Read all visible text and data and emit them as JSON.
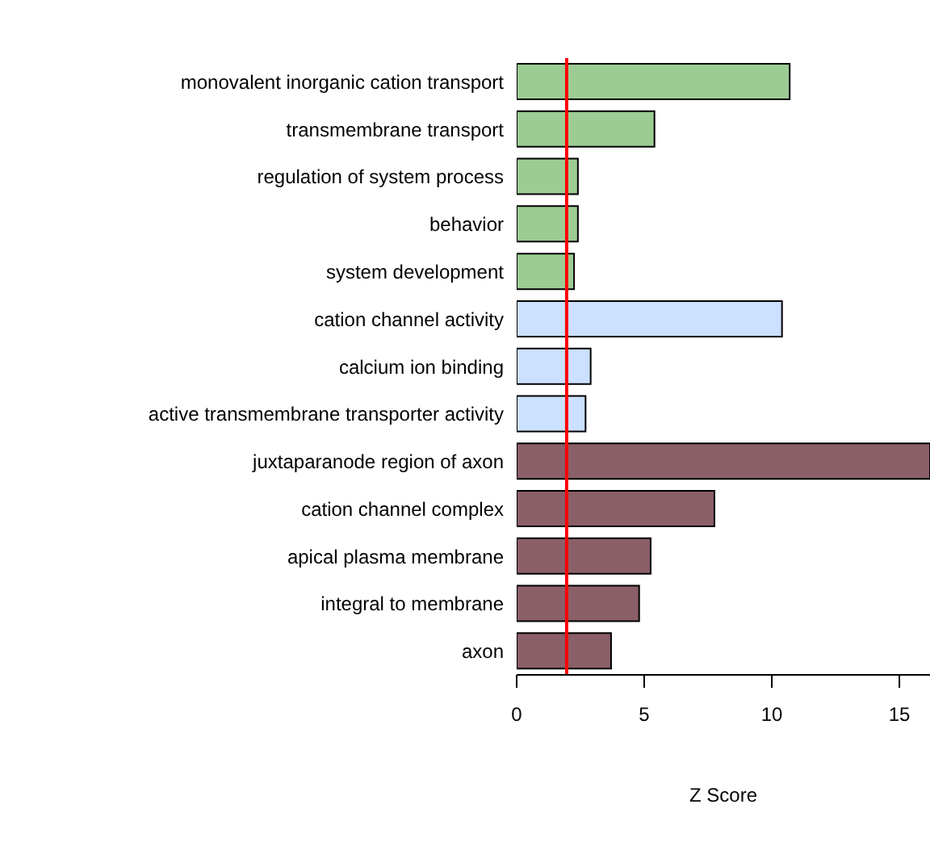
{
  "chart_data": {
    "type": "bar",
    "orientation": "horizontal",
    "xlabel": "Z Score",
    "categories": [
      "monovalent inorganic cation transport",
      "transmembrane transport",
      "regulation of system process",
      "behavior",
      "system development",
      "cation channel activity",
      "calcium ion binding",
      "active transmembrane transporter activity",
      "juxtaparanode region of axon",
      "cation channel complex",
      "apical plasma membrane",
      "integral to membrane",
      "axon"
    ],
    "values": [
      10.7,
      5.4,
      2.4,
      2.4,
      2.25,
      10.4,
      2.9,
      2.7,
      16.2,
      7.75,
      5.25,
      4.8,
      3.7
    ],
    "colors": [
      "#9ccc94",
      "#9ccc94",
      "#9ccc94",
      "#9ccc94",
      "#9ccc94",
      "#cce0ff",
      "#cce0ff",
      "#cce0ff",
      "#8b5f68",
      "#8b5f68",
      "#8b5f68",
      "#8b5f68",
      "#8b5f68"
    ],
    "xlim": [
      0,
      16.2
    ],
    "xticks": [
      0,
      5,
      10,
      15
    ],
    "ref_lines": [
      {
        "axis": "x",
        "value": 1.96,
        "color": "#ff0000"
      }
    ],
    "grid": false,
    "legend": false
  }
}
